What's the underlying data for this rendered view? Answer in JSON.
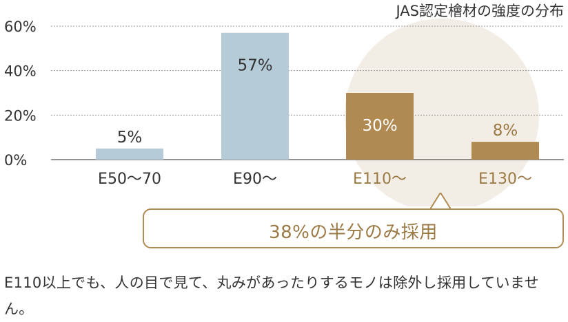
{
  "chart_data": {
    "type": "bar",
    "title": "JAS認定檜材の強度の分布",
    "categories": [
      "E50〜70",
      "E90〜",
      "E110〜",
      "E130〜"
    ],
    "values": [
      5,
      57,
      30,
      8
    ],
    "value_labels": [
      "5%",
      "57%",
      "30%",
      "8%"
    ],
    "y_ticks": [
      "0%",
      "20%",
      "40%",
      "60%"
    ],
    "ylim": [
      0,
      60
    ],
    "grid": true,
    "colors": {
      "default_bar": "#b5ccd8",
      "highlight_bar": "#b08a51",
      "highlight_text": "#9c7a45",
      "highlight_circle": "#f2ede5",
      "gridline": "#9a9a9a",
      "axis": "#555555"
    },
    "highlighted_categories": [
      "E110〜",
      "E130〜"
    ]
  },
  "callout": {
    "text": "38%の半分のみ採用"
  },
  "note": {
    "text": "E110以上でも、人の目で見て、丸みがあったりするモノは除外し採用していません。"
  }
}
